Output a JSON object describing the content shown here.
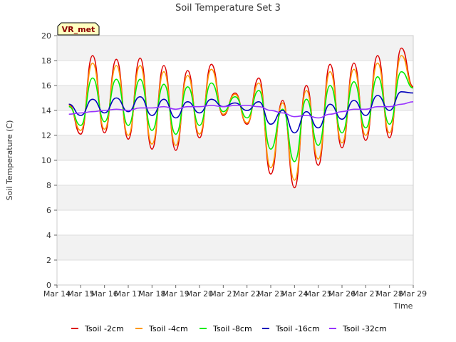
{
  "chart_data": {
    "type": "line",
    "title": "Soil Temperature Set 3",
    "xlabel": "Time",
    "ylabel": "Soil Temperature (C)",
    "badge": "VR_met",
    "ylim": [
      0,
      20
    ],
    "yticks": [
      "0",
      "2",
      "4",
      "6",
      "8",
      "10",
      "12",
      "14",
      "16",
      "18",
      "20"
    ],
    "xticks": [
      "Mar 14",
      "Mar 15",
      "Mar 16",
      "Mar 17",
      "Mar 18",
      "Mar 19",
      "Mar 20",
      "Mar 21",
      "Mar 22",
      "Mar 23",
      "Mar 24",
      "Mar 25",
      "Mar 26",
      "Mar 27",
      "Mar 28",
      "Mar 29"
    ],
    "grid": true,
    "legend_position": "bottom",
    "series": [
      {
        "name": "Tsoil -2cm",
        "color": "#dd0000",
        "values": [
          14.5,
          12.1,
          18.4,
          12.2,
          18.1,
          11.7,
          18.2,
          10.9,
          17.6,
          10.8,
          17.2,
          11.8,
          17.7,
          13.6,
          15.4,
          12.9,
          16.6,
          8.9,
          14.8,
          7.8,
          16.0,
          9.6,
          17.7,
          11.0,
          17.8,
          11.6,
          18.4,
          11.8,
          19.0,
          15.9
        ]
      },
      {
        "name": "Tsoil -4cm",
        "color": "#ff9900",
        "values": [
          14.4,
          12.4,
          17.8,
          12.5,
          17.6,
          12.0,
          17.6,
          11.3,
          17.1,
          11.2,
          16.8,
          12.1,
          17.3,
          13.7,
          15.3,
          13.0,
          16.2,
          9.4,
          14.6,
          8.4,
          15.6,
          10.1,
          17.1,
          11.4,
          17.3,
          12.0,
          17.8,
          12.2,
          18.4,
          15.8
        ]
      },
      {
        "name": "Tsoil -8cm",
        "color": "#00ee00",
        "values": [
          14.3,
          12.8,
          16.6,
          13.1,
          16.5,
          12.8,
          16.5,
          12.4,
          16.1,
          12.1,
          15.9,
          12.8,
          16.2,
          13.9,
          15.1,
          13.4,
          15.6,
          10.9,
          14.1,
          9.9,
          14.9,
          11.2,
          16.0,
          12.2,
          16.3,
          12.6,
          16.7,
          12.9,
          17.1,
          15.8
        ]
      },
      {
        "name": "Tsoil -16cm",
        "color": "#0000bb",
        "values": [
          14.5,
          13.6,
          14.9,
          13.8,
          15.0,
          13.9,
          15.1,
          13.6,
          14.9,
          13.4,
          14.7,
          13.8,
          14.9,
          14.3,
          14.6,
          14.0,
          14.7,
          12.9,
          14.0,
          12.2,
          13.9,
          12.6,
          14.5,
          13.3,
          14.8,
          13.6,
          15.2,
          14.0,
          15.5,
          15.4
        ]
      },
      {
        "name": "Tsoil -32cm",
        "color": "#9933ff",
        "values": [
          13.7,
          13.8,
          13.9,
          14.0,
          14.1,
          14.0,
          14.2,
          14.2,
          14.3,
          14.1,
          14.3,
          14.3,
          14.4,
          14.3,
          14.4,
          14.4,
          14.3,
          14.0,
          13.8,
          13.5,
          13.6,
          13.4,
          13.7,
          13.9,
          14.1,
          14.1,
          14.3,
          14.3,
          14.5,
          14.7
        ]
      }
    ]
  }
}
